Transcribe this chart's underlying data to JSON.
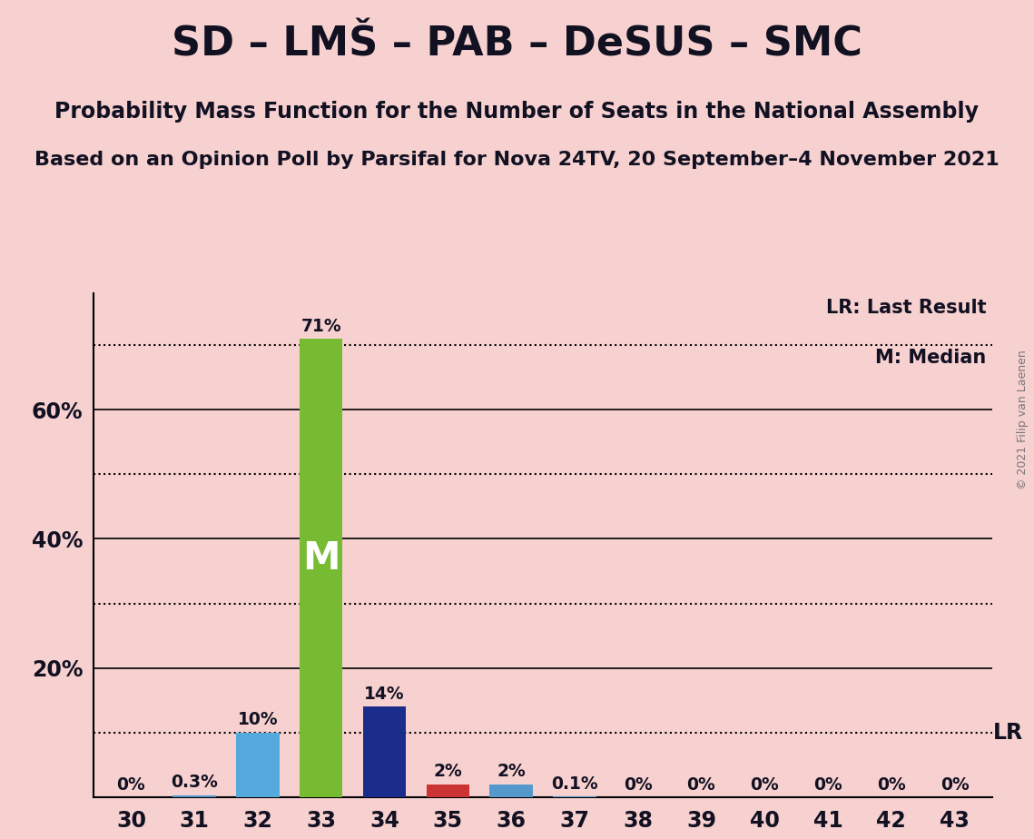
{
  "title": "SD – LMŠ – PAB – DeSUS – SMC",
  "subtitle1": "Probability Mass Function for the Number of Seats in the National Assembly",
  "subtitle2": "Based on an Opinion Poll by Parsifal for Nova 24TV, 20 September–4 November 2021",
  "copyright": "© 2021 Filip van Laenen",
  "seats": [
    30,
    31,
    32,
    33,
    34,
    35,
    36,
    37,
    38,
    39,
    40,
    41,
    42,
    43
  ],
  "probabilities": [
    0.0,
    0.003,
    0.1,
    0.71,
    0.14,
    0.02,
    0.02,
    0.001,
    0.0,
    0.0,
    0.0,
    0.0,
    0.0,
    0.0
  ],
  "labels": [
    "0%",
    "0.3%",
    "10%",
    "71%",
    "14%",
    "2%",
    "2%",
    "0.1%",
    "0%",
    "0%",
    "0%",
    "0%",
    "0%",
    "0%"
  ],
  "bar_colors": [
    "#5599cc",
    "#5599cc",
    "#55aadd",
    "#77bb33",
    "#1a2d8a",
    "#cc3333",
    "#5599cc",
    "#5599cc",
    "#5599cc",
    "#5599cc",
    "#5599cc",
    "#5599cc",
    "#5599cc",
    "#5599cc"
  ],
  "median_seat": 33,
  "lr_value": 0.1,
  "lr_label": "LR",
  "median_label": "M",
  "background_color": "#f7d0d0",
  "ylim": [
    0,
    0.78
  ],
  "major_yticks": [
    0.2,
    0.4,
    0.6
  ],
  "major_ytick_labels": [
    "20%",
    "40%",
    "60%"
  ],
  "dotted_hlines": [
    0.1,
    0.3,
    0.5,
    0.7
  ],
  "legend_lr": "LR: Last Result",
  "legend_m": "M: Median"
}
